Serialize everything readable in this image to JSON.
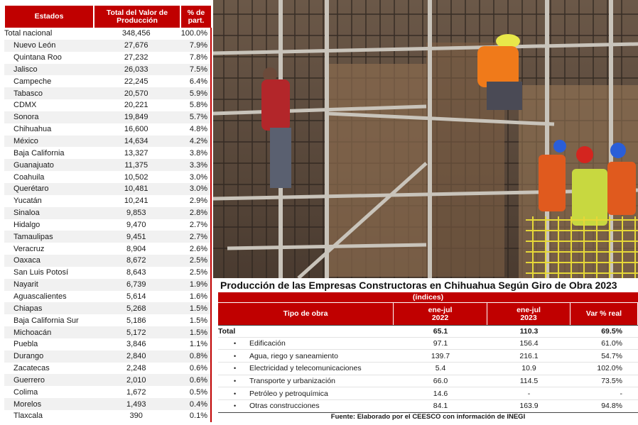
{
  "left_table": {
    "headers": [
      "Estados",
      "Total del Valor de Producción",
      "% de part."
    ],
    "rows": [
      [
        "Total nacional",
        "348,456",
        "100.0%"
      ],
      [
        "Nuevo León",
        "27,676",
        "7.9%"
      ],
      [
        "Quintana Roo",
        "27,232",
        "7.8%"
      ],
      [
        "Jalisco",
        "26,033",
        "7.5%"
      ],
      [
        "Campeche",
        "22,245",
        "6.4%"
      ],
      [
        "Tabasco",
        "20,570",
        "5.9%"
      ],
      [
        "CDMX",
        "20,221",
        "5.8%"
      ],
      [
        "Sonora",
        "19,849",
        "5.7%"
      ],
      [
        "Chihuahua",
        "16,600",
        "4.8%"
      ],
      [
        "México",
        "14,634",
        "4.2%"
      ],
      [
        "Baja California",
        "13,327",
        "3.8%"
      ],
      [
        "Guanajuato",
        "11,375",
        "3.3%"
      ],
      [
        "Coahuila",
        "10,502",
        "3.0%"
      ],
      [
        "Querétaro",
        "10,481",
        "3.0%"
      ],
      [
        "Yucatán",
        "10,241",
        "2.9%"
      ],
      [
        "Sinaloa",
        "9,853",
        "2.8%"
      ],
      [
        "Hidalgo",
        "9,470",
        "2.7%"
      ],
      [
        "Tamaulipas",
        "9,451",
        "2.7%"
      ],
      [
        "Veracruz",
        "8,904",
        "2.6%"
      ],
      [
        "Oaxaca",
        "8,672",
        "2.5%"
      ],
      [
        "San Luis Potosí",
        "8,643",
        "2.5%"
      ],
      [
        "Nayarit",
        "6,739",
        "1.9%"
      ],
      [
        "Aguascalientes",
        "5,614",
        "1.6%"
      ],
      [
        "Chiapas",
        "5,268",
        "1.5%"
      ],
      [
        "Baja California Sur",
        "5,186",
        "1.5%"
      ],
      [
        "Michoacán",
        "5,172",
        "1.5%"
      ],
      [
        "Puebla",
        "3,846",
        "1.1%"
      ],
      [
        "Durango",
        "2,840",
        "0.8%"
      ],
      [
        "Zacatecas",
        "2,248",
        "0.6%"
      ],
      [
        "Guerrero",
        "2,010",
        "0.6%"
      ],
      [
        "Colima",
        "1,672",
        "0.5%"
      ],
      [
        "Morelos",
        "1,493",
        "0.4%"
      ],
      [
        "Tlaxcala",
        "390",
        "0.1%"
      ]
    ]
  },
  "right_table": {
    "title": "Producción de las Empresas Constructoras en Chihuahua Según Giro de Obra 2023",
    "subtitle": "(índices)",
    "headers": {
      "tipo": "Tipo de obra",
      "col2_top": "ene-jul",
      "col2_bottom": "2022",
      "col3_top": "ene-jul",
      "col3_bottom": "2023",
      "col4": "Var % real"
    },
    "total": [
      "Total",
      "65.1",
      "110.3",
      "69.5%"
    ],
    "bullet": "•",
    "rows": [
      [
        "Edificación",
        "97.1",
        "156.4",
        "61.0%"
      ],
      [
        "Agua, riego y saneamiento",
        "139.7",
        "216.1",
        "54.7%"
      ],
      [
        "Electricidad y telecomunicaciones",
        "5.4",
        "10.9",
        "102.0%"
      ],
      [
        "Transporte y urbanización",
        "66.0",
        "114.5",
        "73.5%"
      ],
      [
        "Petróleo y petroquímica",
        "14.6",
        "-",
        "-"
      ],
      [
        "Otras construcciones",
        "84.1",
        "163.9",
        "94.8%"
      ]
    ],
    "source": "Fuente: Elaborado por el CEESCO con información de INEGI"
  },
  "colors": {
    "header_red": "#c00000"
  }
}
